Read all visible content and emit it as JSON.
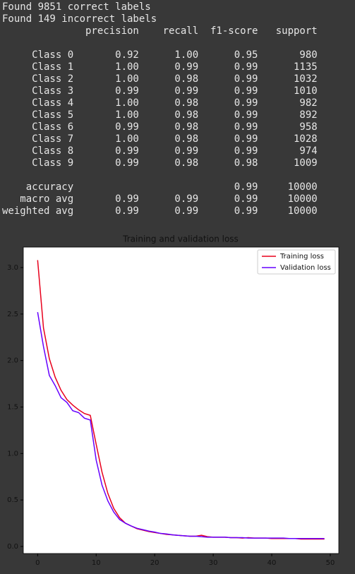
{
  "report": {
    "found": [
      "Found 9851 correct labels",
      "Found 149 incorrect labels"
    ],
    "header": "              precision    recall  f1-score   support",
    "rows": [
      "     Class 0       0.92      1.00      0.95       980",
      "     Class 1       1.00      0.99      0.99      1135",
      "     Class 2       1.00      0.98      0.99      1032",
      "     Class 3       0.99      0.99      0.99      1010",
      "     Class 4       1.00      0.98      0.99       982",
      "     Class 5       1.00      0.98      0.99       892",
      "     Class 6       0.99      0.98      0.99       958",
      "     Class 7       1.00      0.98      0.99      1028",
      "     Class 8       0.99      0.99      0.99       974",
      "     Class 9       0.99      0.98      0.98      1009"
    ],
    "summary": [
      "    accuracy                           0.99     10000",
      "   macro avg       0.99      0.99      0.99     10000",
      "weighted avg       0.99      0.99      0.99     10000"
    ]
  },
  "chart_data": {
    "type": "line",
    "title": "Training and validation loss",
    "x": [
      0,
      1,
      2,
      3,
      4,
      5,
      6,
      7,
      8,
      9,
      10,
      11,
      12,
      13,
      14,
      15,
      16,
      17,
      18,
      19,
      20,
      21,
      22,
      23,
      24,
      25,
      26,
      27,
      28,
      29,
      30,
      31,
      32,
      33,
      34,
      35,
      36,
      37,
      38,
      39,
      40,
      41,
      42,
      43,
      44,
      45,
      46,
      47,
      48,
      49
    ],
    "series": [
      {
        "name": "Training loss",
        "color": "#e8001c",
        "values": [
          3.08,
          2.35,
          2.02,
          1.82,
          1.68,
          1.58,
          1.52,
          1.47,
          1.43,
          1.41,
          1.1,
          0.8,
          0.57,
          0.41,
          0.31,
          0.25,
          0.22,
          0.19,
          0.175,
          0.16,
          0.15,
          0.14,
          0.13,
          0.125,
          0.12,
          0.115,
          0.11,
          0.11,
          0.12,
          0.105,
          0.1,
          0.1,
          0.1,
          0.095,
          0.095,
          0.09,
          0.095,
          0.09,
          0.09,
          0.09,
          0.085,
          0.085,
          0.085,
          0.085,
          0.085,
          0.08,
          0.08,
          0.08,
          0.08,
          0.08
        ]
      },
      {
        "name": "Validation loss",
        "color": "#6600ff",
        "values": [
          2.52,
          2.15,
          1.84,
          1.73,
          1.6,
          1.55,
          1.46,
          1.44,
          1.38,
          1.36,
          0.93,
          0.66,
          0.49,
          0.37,
          0.29,
          0.25,
          0.22,
          0.195,
          0.18,
          0.165,
          0.155,
          0.14,
          0.135,
          0.125,
          0.12,
          0.115,
          0.11,
          0.11,
          0.105,
          0.1,
          0.1,
          0.1,
          0.1,
          0.095,
          0.095,
          0.095,
          0.09,
          0.09,
          0.09,
          0.09,
          0.09,
          0.09,
          0.09,
          0.085,
          0.085,
          0.085,
          0.085,
          0.085,
          0.085,
          0.085
        ]
      }
    ],
    "xlim": [
      -2.45,
      51.45
    ],
    "ylim": [
      -0.076,
      3.22
    ],
    "xticks": [
      0,
      10,
      20,
      30,
      40,
      50
    ],
    "yticks": [
      {
        "value": 0,
        "label": "0.0"
      },
      0.5,
      {
        "value": 1,
        "label": "1.0"
      },
      1.5,
      {
        "value": 2,
        "label": "2.0"
      },
      2.5,
      {
        "value": 3,
        "label": "3.0"
      }
    ],
    "legend": "upper right"
  }
}
